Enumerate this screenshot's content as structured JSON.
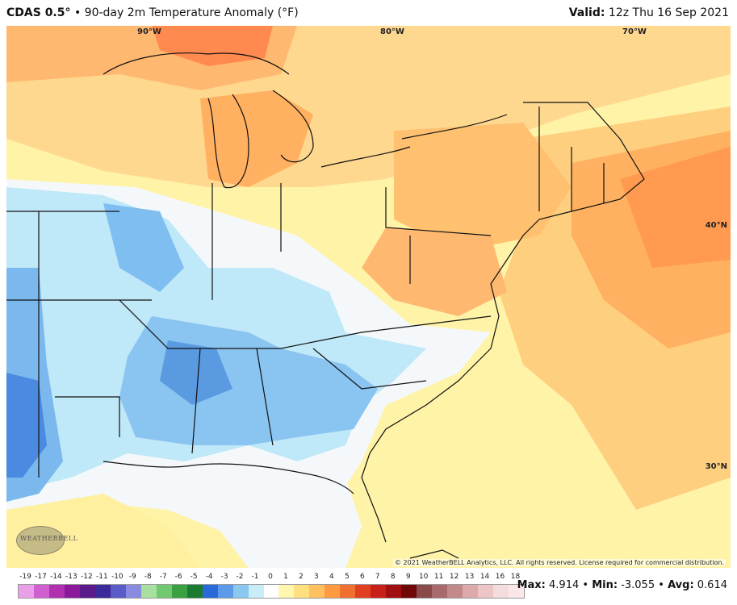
{
  "header": {
    "model": "CDAS 0.5",
    "degree_mark": "°",
    "separator": "•",
    "description": "90-day 2m Temperature Anomaly (°F)",
    "valid_label": "Valid:",
    "valid_time": "12z Thu 16 Sep 2021"
  },
  "map": {
    "longitude_labels": [
      "90°W",
      "80°W",
      "70°W"
    ],
    "latitude_labels": [
      "40°N",
      "30°N"
    ],
    "copyright": "© 2021 WeatherBELL Analytics, LLC. All rights reserved. License required for commercial distribution.",
    "logo_text": "WEATHERBELL"
  },
  "legend": {
    "ticks": [
      "-19",
      "-17",
      "-14",
      "-13",
      "-12",
      "-11",
      "-10",
      "-9",
      "-8",
      "-7",
      "-6",
      "-5",
      "-4",
      "-3",
      "-2",
      "-1",
      "0",
      "1",
      "2",
      "3",
      "4",
      "5",
      "6",
      "7",
      "8",
      "9",
      "10",
      "11",
      "12",
      "13",
      "14",
      "16",
      "18"
    ],
    "colors": [
      "#e8a0e8",
      "#d060d0",
      "#b030b0",
      "#8a1a9a",
      "#5a1a8a",
      "#3a2a9a",
      "#5a5ac8",
      "#8a8ae0",
      "#a8e0a0",
      "#70c870",
      "#3aa040",
      "#1a7a30",
      "#2a6ad8",
      "#5a9ae8",
      "#8ac8f0",
      "#c8ecf8",
      "#ffffff",
      "#fff6b0",
      "#ffe080",
      "#ffc060",
      "#ff9a40",
      "#f07030",
      "#e04020",
      "#c82018",
      "#a01010",
      "#700808",
      "#8a4a4a",
      "#a86a6a",
      "#c48a8a",
      "#dcaaaa",
      "#ecc6c6",
      "#f4dcdc",
      "#fae8e8"
    ]
  },
  "stats": {
    "max_label": "Max:",
    "max": "4.914",
    "min_label": "Min:",
    "min": "-3.055",
    "avg_label": "Avg:",
    "avg": "0.614",
    "sep": "•"
  }
}
